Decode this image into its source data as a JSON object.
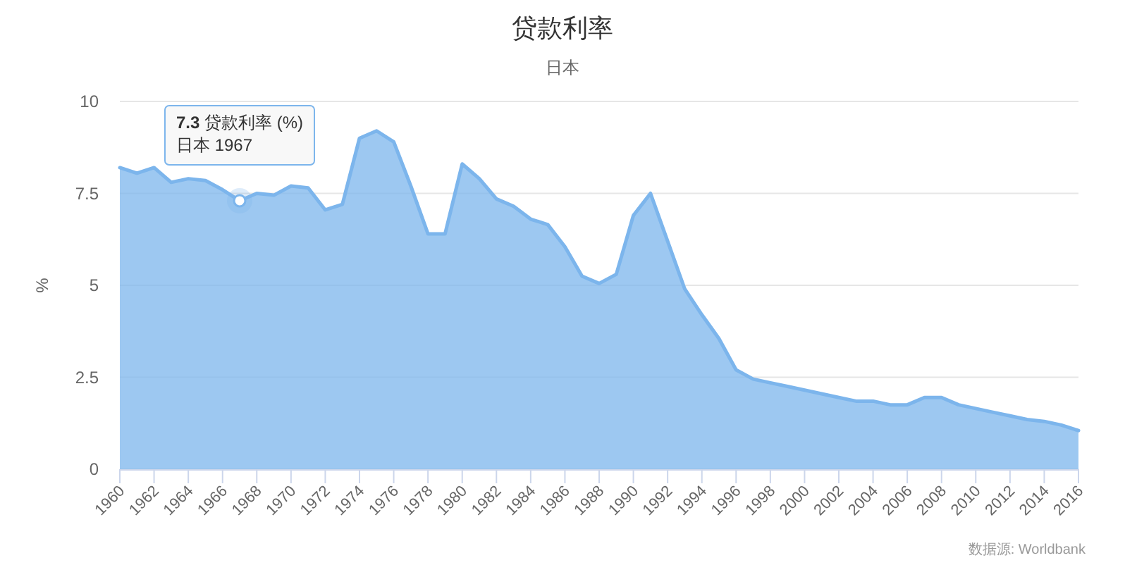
{
  "chart_data": {
    "type": "area",
    "title": "贷款利率",
    "subtitle": "日本",
    "ylabel": "%",
    "x": [
      1960,
      1961,
      1962,
      1963,
      1964,
      1965,
      1966,
      1967,
      1968,
      1969,
      1970,
      1971,
      1972,
      1973,
      1974,
      1975,
      1976,
      1977,
      1978,
      1979,
      1980,
      1981,
      1982,
      1983,
      1984,
      1985,
      1986,
      1987,
      1988,
      1989,
      1990,
      1991,
      1992,
      1993,
      1994,
      1995,
      1996,
      1997,
      1998,
      1999,
      2000,
      2001,
      2002,
      2003,
      2004,
      2005,
      2006,
      2007,
      2008,
      2009,
      2010,
      2011,
      2012,
      2013,
      2014,
      2015,
      2016
    ],
    "series": [
      {
        "color": "#7cb5ec",
        "values": [
          8.2,
          8.05,
          8.2,
          7.8,
          7.9,
          7.85,
          7.6,
          7.3,
          7.5,
          7.45,
          7.7,
          7.65,
          7.05,
          7.2,
          9.0,
          9.2,
          8.9,
          7.7,
          6.4,
          6.4,
          8.3,
          7.9,
          7.35,
          7.15,
          6.8,
          6.65,
          6.05,
          5.25,
          5.05,
          5.3,
          6.9,
          7.5,
          6.2,
          4.9,
          4.2,
          3.55,
          2.7,
          2.45,
          2.35,
          2.25,
          2.15,
          2.05,
          1.95,
          1.85,
          1.85,
          1.75,
          1.75,
          1.95,
          1.95,
          1.75,
          1.65,
          1.55,
          1.45,
          1.35,
          1.3,
          1.2,
          1.05
        ]
      }
    ],
    "xlim": [
      1960,
      2016
    ],
    "xticks": [
      1960,
      1962,
      1964,
      1966,
      1968,
      1970,
      1972,
      1974,
      1976,
      1978,
      1980,
      1982,
      1984,
      1986,
      1988,
      1990,
      1992,
      1994,
      1996,
      1998,
      2000,
      2002,
      2004,
      2006,
      2008,
      2010,
      2012,
      2014,
      2016
    ],
    "ylim": [
      0,
      10
    ],
    "yticks": [
      0,
      2.5,
      5,
      7.5,
      10
    ],
    "grid": "y",
    "annotations": [
      {
        "text": "7.3 贷款利率 (%)\n日本 1967",
        "x": 1967,
        "y": 7.3
      },
      "数据源: Worldbank"
    ]
  }
}
